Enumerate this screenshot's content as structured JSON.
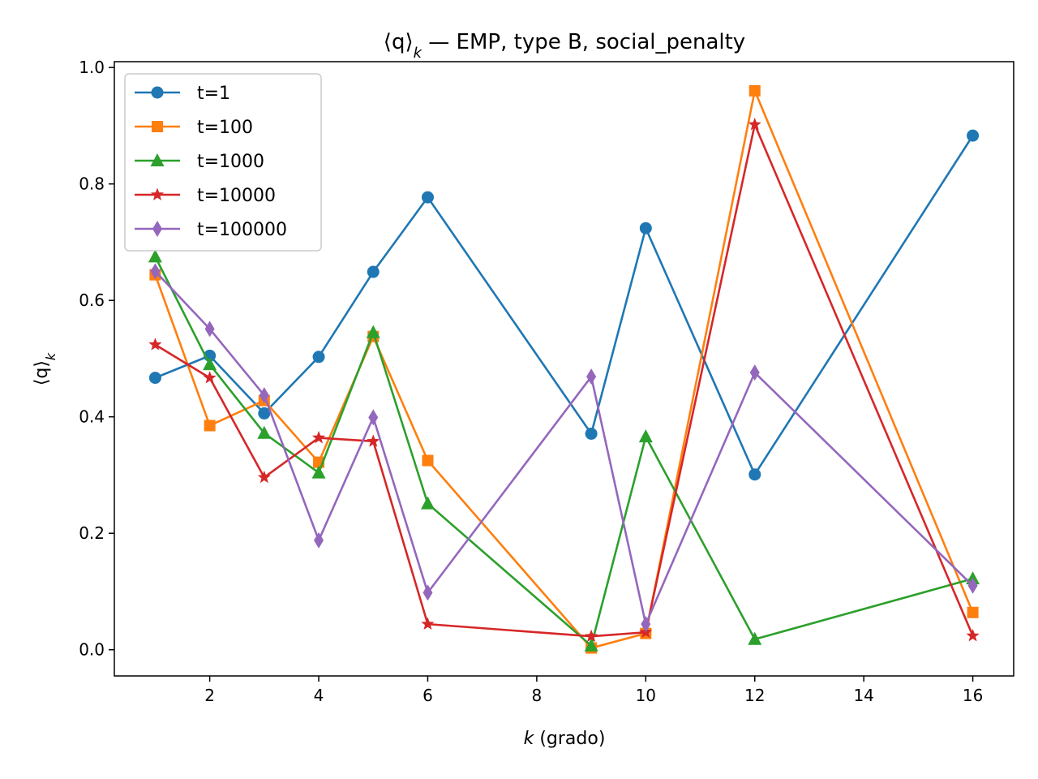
{
  "chart_data": {
    "type": "line",
    "title_prefix": "⟨q⟩",
    "title_sub": "k",
    "title_suffix": " — EMP, type B, social_penalty",
    "xlabel_var": "k",
    "xlabel_rest": " (grado)",
    "ylabel_main": "⟨q⟩",
    "ylabel_sub": "k",
    "xlim": [
      0.25,
      16.75
    ],
    "ylim": [
      -0.045,
      1.01
    ],
    "xticks": [
      2,
      4,
      6,
      8,
      10,
      12,
      14,
      16
    ],
    "yticks": [
      0.0,
      0.2,
      0.4,
      0.6,
      0.8,
      1.0
    ],
    "ytick_labels": [
      "0.0",
      "0.2",
      "0.4",
      "0.6",
      "0.8",
      "1.0"
    ],
    "legend_position": "upper-left",
    "x": [
      1,
      2,
      3,
      4,
      5,
      6,
      9,
      10,
      12,
      16
    ],
    "series": [
      {
        "name": "t=1",
        "color": "#1f77b4",
        "marker": "circle",
        "values": [
          0.467,
          0.505,
          0.406,
          0.503,
          0.649,
          0.777,
          0.371,
          0.724,
          0.301,
          0.883
        ]
      },
      {
        "name": "t=100",
        "color": "#ff7f0e",
        "marker": "square",
        "values": [
          0.644,
          0.385,
          0.428,
          0.322,
          0.538,
          0.325,
          0.003,
          0.028,
          0.96,
          0.064
        ]
      },
      {
        "name": "t=1000",
        "color": "#2ca02c",
        "marker": "triangle",
        "values": [
          0.675,
          0.49,
          0.372,
          0.304,
          0.545,
          0.251,
          0.007,
          0.366,
          0.018,
          0.122
        ]
      },
      {
        "name": "t=10000",
        "color": "#d62728",
        "marker": "star",
        "values": [
          0.524,
          0.467,
          0.296,
          0.364,
          0.358,
          0.044,
          0.023,
          0.03,
          0.902,
          0.024
        ]
      },
      {
        "name": "t=100000",
        "color": "#9467bd",
        "marker": "diamond",
        "values": [
          0.65,
          0.551,
          0.437,
          0.188,
          0.399,
          0.098,
          0.469,
          0.044,
          0.476,
          0.11
        ]
      }
    ]
  }
}
